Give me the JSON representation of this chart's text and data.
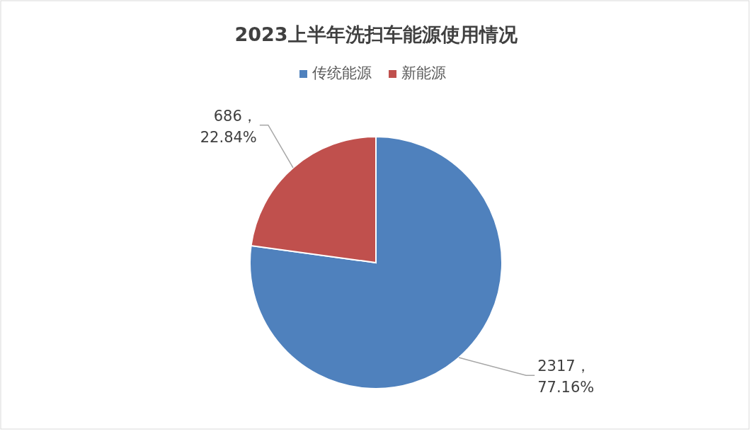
{
  "chart_data": {
    "type": "pie",
    "title": "2023上半年洗扫车能源使用情况",
    "categories": [
      "传统能源",
      "新能源"
    ],
    "values": [
      2317,
      686
    ],
    "colors": [
      "#4f81bd",
      "#c0504d"
    ],
    "value_labels": [
      "2317，77.16%",
      "686，22.84%"
    ],
    "legend": "top"
  }
}
